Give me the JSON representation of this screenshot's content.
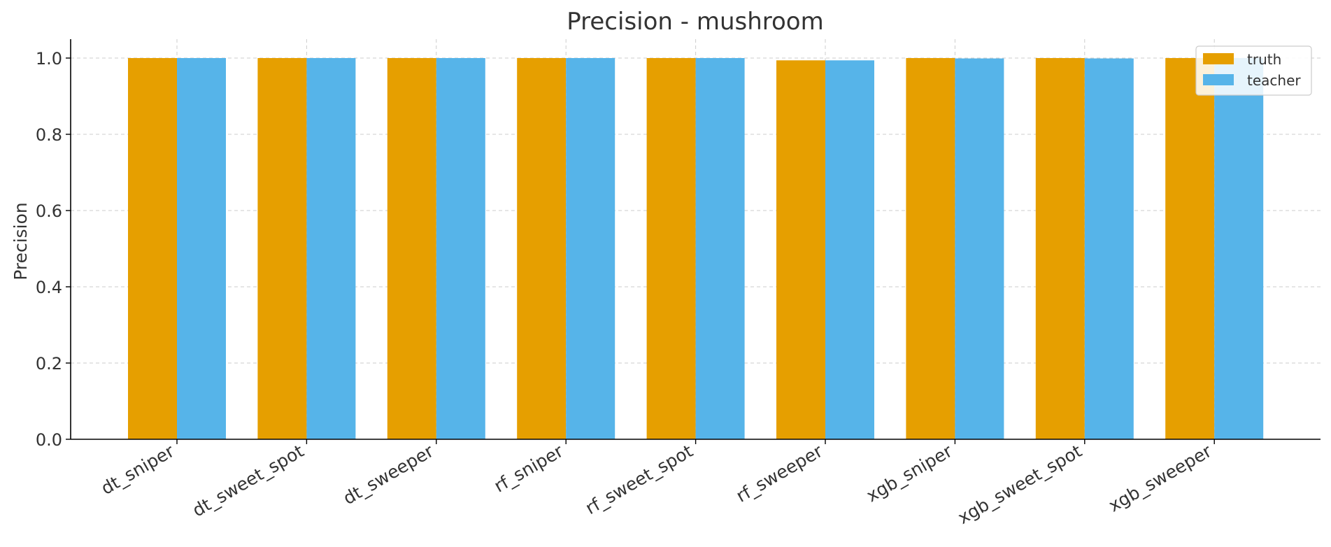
{
  "chart_data": {
    "type": "bar",
    "title": "Precision - mushroom",
    "xlabel": "",
    "ylabel": "Precision",
    "ylim": [
      0,
      1.05
    ],
    "yticks": [
      0.0,
      0.2,
      0.4,
      0.6,
      0.8,
      1.0
    ],
    "ytick_labels": [
      "0.0",
      "0.2",
      "0.4",
      "0.6",
      "0.8",
      "1.0"
    ],
    "grid": true,
    "legend_position": "top-right",
    "categories": [
      "dt_sniper",
      "dt_sweet_spot",
      "dt_sweeper",
      "rf_sniper",
      "rf_sweet_spot",
      "rf_sweeper",
      "xgb_sniper",
      "xgb_sweet_spot",
      "xgb_sweeper"
    ],
    "series": [
      {
        "name": "truth",
        "color": "#E69F00",
        "values": [
          1.0,
          1.0,
          1.0,
          1.0,
          1.0,
          0.994,
          1.0,
          1.0,
          1.0
        ]
      },
      {
        "name": "teacher",
        "color": "#56B4E9",
        "values": [
          1.0,
          1.0,
          1.0,
          1.0,
          1.0,
          0.994,
          0.999,
          0.999,
          1.0
        ]
      }
    ]
  }
}
